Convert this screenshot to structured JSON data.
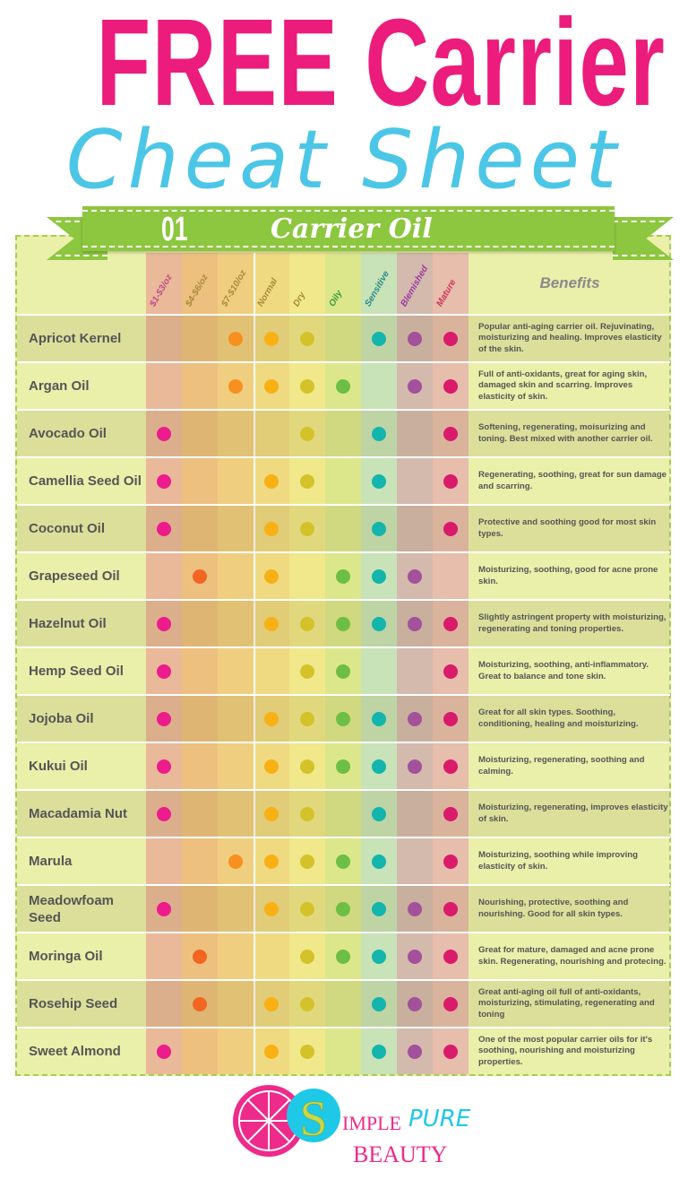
{
  "title": {
    "line1": "FREE Carrier Oil",
    "line2": "Cheat Sheet"
  },
  "banner": {
    "number": "01",
    "label": "Carrier Oil"
  },
  "columns": [
    {
      "label": "$1-$3/oz",
      "color": "#c0498a",
      "band": "#e9b99a",
      "dot": "#ec1c8c"
    },
    {
      "label": "$4-$6/oz",
      "color": "#a88a3a",
      "band": "#edc07f",
      "dot": "#f26522"
    },
    {
      "label": "$7-$10/oz",
      "color": "#a88a3a",
      "band": "#efce80",
      "dot": "#f7901e"
    },
    {
      "label": "Normal",
      "color": "#a88a3a",
      "band": "#efda82",
      "dot": "#f9b015"
    },
    {
      "label": "Dry",
      "color": "#a88a3a",
      "band": "#f0e88a",
      "dot": "#d4c22a"
    },
    {
      "label": "Oily",
      "color": "#3a9a3a",
      "band": "#dce78c",
      "dot": "#6cbf44"
    },
    {
      "label": "Sensitive",
      "color": "#2a8a8a",
      "band": "#c8e3b7",
      "dot": "#13b5ac"
    },
    {
      "label": "Blemished",
      "color": "#9a3aa0",
      "band": "#d4b9ad",
      "dot": "#a3519b"
    },
    {
      "label": "Mature",
      "color": "#d03060",
      "band": "#e7bdac",
      "dot": "#d91b6b"
    }
  ],
  "benefits_header": "Benefits",
  "oils": [
    {
      "name": "Apricot Kernel",
      "marks": [
        2,
        3,
        4,
        6,
        7,
        8
      ],
      "benefit": "Popular anti-aging carrier oil. Rejuvinating, moisturizing and healing. Improves elasticity of the skin."
    },
    {
      "name": "Argan Oil",
      "marks": [
        2,
        3,
        4,
        5,
        7,
        8
      ],
      "benefit": "Full of anti-oxidants, great for aging skin, damaged skin and scarring. Improves elasticity of skin."
    },
    {
      "name": "Avocado Oil",
      "marks": [
        0,
        4,
        6,
        8
      ],
      "benefit": "Softening, regenerating, moisurizing and toning. Best mixed with another carrier oil."
    },
    {
      "name": "Camellia Seed Oil",
      "marks": [
        0,
        3,
        4,
        6,
        8
      ],
      "benefit": "Regenerating, soothing, great for sun damage and scarring."
    },
    {
      "name": "Coconut Oil",
      "marks": [
        0,
        3,
        4,
        6,
        8
      ],
      "benefit": "Protective and soothing good for most skin types."
    },
    {
      "name": "Grapeseed Oil",
      "marks": [
        1,
        3,
        5,
        6,
        7
      ],
      "benefit": "Moisturizing, soothing, good for acne prone skin."
    },
    {
      "name": "Hazelnut Oil",
      "marks": [
        0,
        3,
        4,
        5,
        6,
        7,
        8
      ],
      "benefit": "Slightly astringent property with moisturizing, regenerating and toning properties."
    },
    {
      "name": "Hemp Seed Oil",
      "marks": [
        0,
        4,
        5,
        8
      ],
      "benefit": "Moisturizing, soothing, anti-inflammatory. Great to balance and tone skin."
    },
    {
      "name": "Jojoba Oil",
      "marks": [
        0,
        3,
        4,
        5,
        6,
        7,
        8
      ],
      "benefit": "Great for all skin types. Soothing, conditioning, healing and moisturizing."
    },
    {
      "name": "Kukui Oil",
      "marks": [
        0,
        3,
        4,
        5,
        6,
        7,
        8
      ],
      "benefit": "Moisturizing, regenerating, soothing and calming."
    },
    {
      "name": "Macadamia Nut",
      "marks": [
        0,
        3,
        4,
        6,
        8
      ],
      "benefit": "Moisturizing, regenerating, improves elasticity of skin."
    },
    {
      "name": "Marula",
      "marks": [
        2,
        3,
        4,
        5,
        6,
        8
      ],
      "benefit": "Moisturizing, soothing while improving elasticity of skin."
    },
    {
      "name": "Meadowfoam Seed",
      "marks": [
        0,
        3,
        4,
        5,
        6,
        7,
        8
      ],
      "benefit": "Nourishing, protective, soothing and nourishing. Good for all skin types."
    },
    {
      "name": "Moringa Oil",
      "marks": [
        1,
        4,
        5,
        6,
        7,
        8
      ],
      "benefit": "Great for mature, damaged and acne prone skin. Regenerating, nourishing and protecing."
    },
    {
      "name": "Rosehip Seed",
      "marks": [
        1,
        3,
        4,
        6,
        7,
        8
      ],
      "benefit": "Great anti-aging oil full of anti-oxidants, moisturizing, stimulating, regenerating and toning"
    },
    {
      "name": "Sweet Almond",
      "marks": [
        0,
        3,
        4,
        6,
        7,
        8
      ],
      "benefit": "One of the most popular carrier oils for it's soothing, nourishing and moisturizing properties."
    }
  ],
  "logo": {
    "s": "S",
    "text1": "IMPLE",
    "text2": "PURE",
    "text3": "BEAUTY",
    "pink": "#ee2a8a",
    "cyan": "#1ec8e6",
    "lime": "#c8d84a"
  }
}
